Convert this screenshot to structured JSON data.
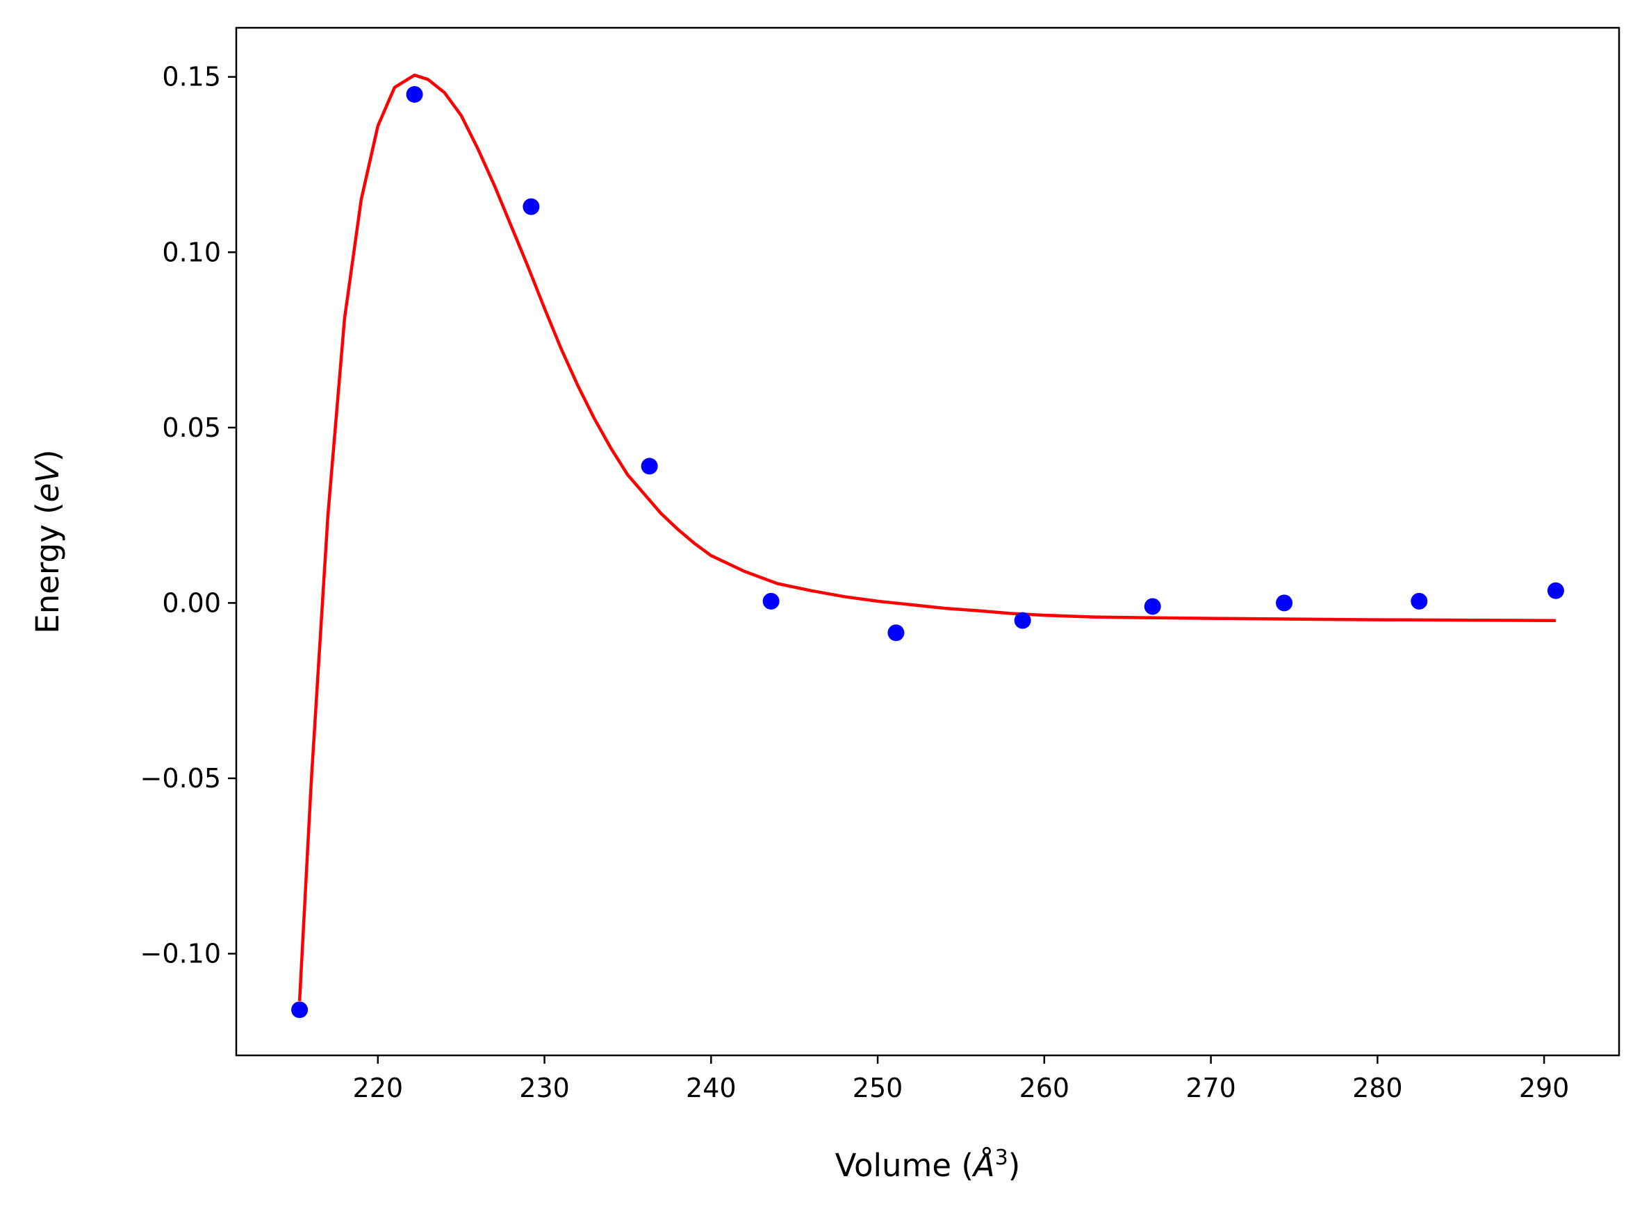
{
  "chart_data": {
    "type": "scatter",
    "title": "",
    "xlabel": "Volume (",
    "xlabel_unit": "Å",
    "xlabel_sup": "3",
    "xlabel_close": ")",
    "ylabel": "Energy (",
    "ylabel_unit": "eV",
    "ylabel_close": ")",
    "xlim": [
      211.5,
      294.5
    ],
    "ylim": [
      -0.129,
      0.164
    ],
    "x_ticks": [
      220,
      230,
      240,
      250,
      260,
      270,
      280,
      290
    ],
    "x_tick_labels": [
      "220",
      "230",
      "240",
      "250",
      "260",
      "270",
      "280",
      "290"
    ],
    "y_ticks": [
      -0.1,
      -0.05,
      0.0,
      0.05,
      0.1,
      0.15
    ],
    "y_tick_labels": [
      "−0.10",
      "−0.05",
      "0.00",
      "0.05",
      "0.10",
      "0.15"
    ],
    "grid": false,
    "series": [
      {
        "kind": "points",
        "color": "#0000ff",
        "x": [
          215.3,
          222.2,
          229.2,
          236.3,
          243.6,
          251.1,
          258.7,
          266.5,
          274.4,
          282.5,
          290.7
        ],
        "y": [
          -0.116,
          0.145,
          0.113,
          0.039,
          0.0005,
          -0.0085,
          -0.005,
          -0.001,
          0.0,
          0.0005,
          0.0035
        ]
      },
      {
        "kind": "fit-line",
        "color": "#ff0000",
        "x": [
          215.3,
          216.0,
          217.0,
          218.0,
          219.0,
          220.0,
          221.0,
          222.2,
          223.0,
          224.0,
          225.0,
          226.0,
          227.0,
          228.0,
          229.0,
          230.0,
          231.0,
          232.0,
          233.0,
          234.0,
          235.0,
          236.0,
          237.0,
          238.0,
          239.0,
          240.0,
          242.0,
          244.0,
          246.0,
          248.0,
          250.0,
          252.0,
          254.0,
          256.0,
          258.0,
          260.0,
          263.0,
          266.0,
          270.0,
          275.0,
          280.0,
          285.0,
          290.7
        ],
        "y": [
          -0.1135,
          -0.051,
          0.025,
          0.081,
          0.115,
          0.136,
          0.147,
          0.1505,
          0.1493,
          0.1455,
          0.139,
          0.1295,
          0.119,
          0.1075,
          0.096,
          0.084,
          0.0725,
          0.062,
          0.0525,
          0.044,
          0.0365,
          0.031,
          0.0255,
          0.021,
          0.017,
          0.0135,
          0.009,
          0.0055,
          0.0035,
          0.0018,
          0.0005,
          -0.0005,
          -0.0015,
          -0.0022,
          -0.003,
          -0.0035,
          -0.004,
          -0.0042,
          -0.0044,
          -0.0046,
          -0.0048,
          -0.0049,
          -0.005
        ]
      }
    ]
  }
}
